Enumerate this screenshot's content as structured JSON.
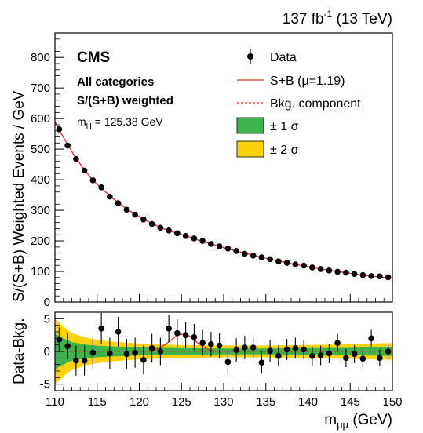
{
  "header": {
    "lumi": "137 fb",
    "lumi_sup": "-1",
    "energy": " (13 TeV)"
  },
  "labels": {
    "cms": "CMS",
    "categories": "All categories",
    "weighting": "S/(S+B) weighted",
    "mass_m": "m",
    "mass_sub": "H",
    "mass_val": " = 125.38 GeV"
  },
  "legend": {
    "data": "Data",
    "sb_pre": "S+B (",
    "sb_mu": "μ",
    "sb_post": "=1.19)",
    "bkg": "Bkg. component",
    "band1": "± 1 σ",
    "band2": "± 2 σ"
  },
  "colors": {
    "sb": "#e8302a",
    "band1": "#3cb44b",
    "band2": "#fcd20b",
    "data": "#000000"
  },
  "chart_data": [
    {
      "type": "scatter",
      "ylabel": "S/(S+B) Weighted Events / GeV",
      "xlim": [
        110,
        150
      ],
      "ylim": [
        0,
        880
      ],
      "yticks": [
        0,
        100,
        200,
        300,
        400,
        500,
        600,
        700,
        800
      ],
      "grid": false,
      "legend_position": "top-right",
      "series": [
        {
          "name": "Data",
          "x": [
            110.5,
            111.5,
            112.5,
            113.5,
            114.5,
            115.5,
            116.5,
            117.5,
            118.5,
            119.5,
            120.5,
            121.5,
            122.5,
            123.5,
            124.5,
            125.5,
            126.5,
            127.5,
            128.5,
            129.5,
            130.5,
            131.5,
            132.5,
            133.5,
            134.5,
            135.5,
            136.5,
            137.5,
            138.5,
            139.5,
            140.5,
            141.5,
            142.5,
            143.5,
            144.5,
            145.5,
            146.5,
            147.5,
            148.5,
            149.5
          ],
          "y": [
            565,
            512,
            468,
            430,
            398,
            375,
            345,
            323,
            302,
            286,
            270,
            255,
            243,
            234,
            225,
            216,
            208,
            200,
            190,
            182,
            175,
            167,
            158,
            152,
            146,
            140,
            133,
            128,
            123,
            119,
            113,
            108,
            103,
            99,
            96,
            92,
            88,
            85,
            84,
            81
          ]
        },
        {
          "name": "S+B (μ=1.19)",
          "x": [
            110.5,
            111.5,
            112.5,
            113.5,
            114.5,
            115.5,
            116.5,
            117.5,
            118.5,
            119.5,
            120.5,
            121.5,
            122.5,
            123.5,
            124.5,
            125.5,
            126.5,
            127.5,
            128.5,
            129.5,
            130.5,
            131.5,
            132.5,
            133.5,
            134.5,
            135.5,
            136.5,
            137.5,
            138.5,
            139.5,
            140.5,
            141.5,
            142.5,
            143.5,
            144.5,
            145.5,
            146.5,
            147.5,
            148.5,
            149.5
          ],
          "y": [
            563,
            515,
            470,
            432,
            398,
            372,
            348,
            325,
            305,
            287,
            271,
            257,
            244,
            233,
            225,
            217,
            207,
            198,
            190,
            182,
            174,
            167,
            160,
            153,
            146,
            140,
            134,
            129,
            123,
            118,
            113,
            108,
            104,
            100,
            96,
            92,
            88,
            85,
            82,
            79
          ]
        }
      ]
    },
    {
      "type": "scatter",
      "ylabel": "Data-Bkg.",
      "xlabel_pre": "m",
      "xlabel_sub": "μμ",
      "xlabel_post": " (GeV)",
      "xlim": [
        110,
        150
      ],
      "ylim": [
        -6,
        6
      ],
      "yticks": [
        -5,
        0,
        5
      ],
      "xticks": [
        110,
        115,
        120,
        125,
        130,
        135,
        140,
        145,
        150
      ],
      "points": {
        "x": [
          110.5,
          111.5,
          112.5,
          113.5,
          114.5,
          115.5,
          116.5,
          117.5,
          118.5,
          119.5,
          120.5,
          121.5,
          122.5,
          123.5,
          124.5,
          125.5,
          126.5,
          127.5,
          128.5,
          129.5,
          130.5,
          131.5,
          132.5,
          133.5,
          134.5,
          135.5,
          136.5,
          137.5,
          138.5,
          139.5,
          140.5,
          141.5,
          142.5,
          143.5,
          144.5,
          145.5,
          146.5,
          147.5,
          148.5,
          149.5
        ],
        "y": [
          1.8,
          0.8,
          -1.4,
          -1.4,
          -0.2,
          3.5,
          -0.3,
          3.0,
          -0.4,
          -0.2,
          -1.3,
          0.5,
          0.0,
          3.5,
          2.8,
          2.5,
          2.2,
          1.3,
          1.1,
          0.9,
          -1.6,
          0.2,
          0.6,
          0.6,
          -1.7,
          0.1,
          -0.7,
          0.3,
          0.5,
          0.3,
          -0.7,
          -0.6,
          -0.3,
          1.3,
          -1.0,
          -0.4,
          -1.1,
          2.0,
          -1.0,
          0.0
        ],
        "err": [
          1.9,
          2.0,
          2.3,
          2.3,
          2.4,
          2.4,
          2.4,
          2.3,
          2.3,
          2.3,
          2.2,
          2.2,
          2.1,
          2.1,
          2.1,
          2.0,
          2.0,
          2.0,
          1.9,
          1.9,
          1.8,
          1.8,
          1.8,
          1.7,
          1.7,
          1.7,
          1.6,
          1.6,
          1.6,
          1.5,
          1.5,
          1.5,
          1.5,
          1.4,
          1.4,
          1.4,
          1.3,
          1.3,
          1.3,
          1.2
        ]
      },
      "signal_curve": {
        "x": [
          121,
          122,
          123,
          124,
          124.5,
          125,
          125.5,
          126,
          126.5,
          127,
          128,
          129,
          130
        ],
        "y": [
          0,
          0.3,
          1.0,
          2.0,
          2.5,
          2.6,
          2.6,
          2.3,
          1.8,
          1.2,
          0.4,
          0.05,
          0
        ]
      },
      "band1": {
        "x": [
          110,
          111,
          112,
          114,
          116,
          120,
          125,
          130,
          135,
          140,
          145,
          150
        ],
        "half": [
          2.7,
          2.0,
          1.4,
          1.0,
          0.8,
          0.6,
          0.5,
          0.45,
          0.45,
          0.5,
          0.55,
          0.7
        ]
      },
      "band2": {
        "x": [
          110,
          111,
          112,
          114,
          116,
          120,
          125,
          130,
          135,
          140,
          145,
          150
        ],
        "half": [
          5.0,
          3.8,
          2.8,
          2.0,
          1.6,
          1.2,
          1.0,
          0.9,
          0.9,
          1.0,
          1.1,
          1.3
        ]
      }
    }
  ]
}
